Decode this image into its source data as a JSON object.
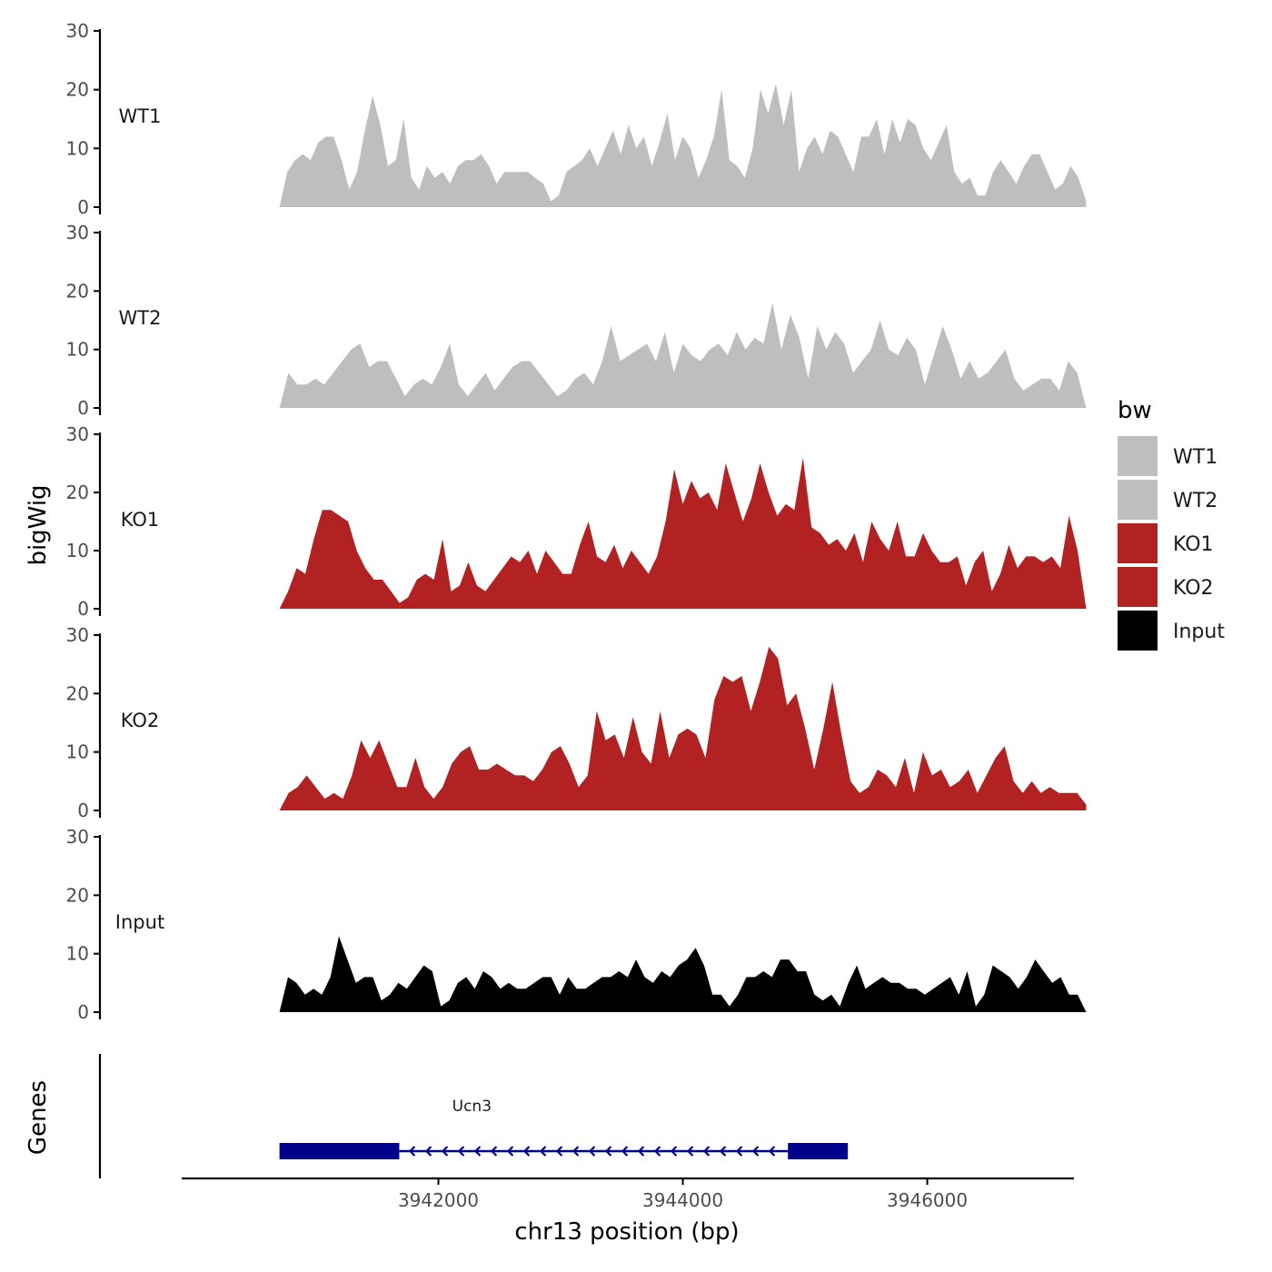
{
  "chart_data": {
    "type": "area",
    "y_title": "bigWig",
    "x_title": "chr13 position (bp)",
    "x_ticks": [
      3942000,
      3944000,
      3946000
    ],
    "x_tick_labels": [
      "3942000",
      "3944000",
      "3946000"
    ],
    "xlim": [
      3939900,
      3947200
    ],
    "y_ticks": [
      0,
      10,
      20,
      30
    ],
    "ylim": [
      0,
      30
    ],
    "data_x_range": [
      3940700,
      3947300
    ],
    "legend": {
      "title": "bw",
      "entries": [
        {
          "label": "WT1",
          "color": "#bebebe"
        },
        {
          "label": "WT2",
          "color": "#bebebe"
        },
        {
          "label": "KO1",
          "color": "#b22222"
        },
        {
          "label": "KO2",
          "color": "#b22222"
        },
        {
          "label": "Input",
          "color": "#000000"
        }
      ]
    },
    "series": [
      {
        "name": "WT1",
        "color": "#bebebe",
        "values": [
          0,
          6,
          8,
          9,
          8,
          11,
          12,
          12,
          8,
          3,
          6,
          13,
          19,
          14,
          7,
          8,
          15,
          5,
          3,
          7,
          5,
          6,
          4,
          7,
          8,
          8,
          9,
          7,
          4,
          6,
          6,
          6,
          6,
          5,
          4,
          1,
          2,
          6,
          7,
          8,
          10,
          7,
          10,
          13,
          9,
          14,
          10,
          12,
          7,
          11,
          16,
          8,
          12,
          10,
          5,
          8,
          12,
          20,
          8,
          7,
          5,
          10,
          20,
          16,
          21,
          14,
          20,
          6,
          10,
          12,
          9,
          13,
          12,
          9,
          6,
          12,
          12,
          15,
          9,
          15,
          11,
          15,
          14,
          10,
          8,
          11,
          14,
          6,
          4,
          5,
          2,
          2,
          6,
          8,
          6,
          4,
          7,
          9,
          9,
          6,
          3,
          4,
          7,
          5,
          1
        ]
      },
      {
        "name": "WT2",
        "color": "#bebebe",
        "values": [
          0,
          6,
          4,
          4,
          5,
          4,
          6,
          8,
          10,
          11,
          7,
          8,
          8,
          5,
          2,
          4,
          5,
          4,
          7,
          11,
          4,
          2,
          4,
          6,
          3,
          5,
          7,
          8,
          8,
          6,
          4,
          2,
          3,
          5,
          6,
          4,
          8,
          14,
          8,
          9,
          10,
          11,
          8,
          13,
          6,
          11,
          9,
          8,
          10,
          11,
          9,
          13,
          10,
          12,
          11,
          18,
          10,
          16,
          12,
          5,
          14,
          10,
          13,
          11,
          6,
          8,
          10,
          15,
          10,
          9,
          12,
          10,
          4,
          9,
          14,
          10,
          5,
          8,
          5,
          6,
          8,
          10,
          5,
          3,
          4,
          5,
          5,
          3,
          8,
          6,
          0
        ]
      },
      {
        "name": "KO1",
        "color": "#b22222",
        "values": [
          0,
          3,
          7,
          6,
          12,
          17,
          17,
          16,
          15,
          10,
          7,
          5,
          5,
          3,
          1,
          2,
          5,
          6,
          5,
          12,
          3,
          4,
          8,
          4,
          3,
          5,
          7,
          9,
          8,
          10,
          6,
          10,
          8,
          6,
          6,
          11,
          15,
          9,
          8,
          11,
          7,
          10,
          8,
          6,
          9,
          15,
          24,
          18,
          22,
          19,
          20,
          17,
          25,
          20,
          15,
          19,
          25,
          20,
          16,
          18,
          17,
          26,
          14,
          13,
          11,
          12,
          10,
          13,
          8,
          15,
          12,
          10,
          15,
          9,
          9,
          13,
          10,
          8,
          8,
          9,
          4,
          8,
          10,
          3,
          6,
          11,
          7,
          9,
          9,
          8,
          9,
          7,
          16,
          10,
          0
        ]
      },
      {
        "name": "KO2",
        "color": "#b22222",
        "values": [
          0,
          3,
          4,
          6,
          4,
          2,
          3,
          2,
          6,
          12,
          9,
          12,
          8,
          4,
          4,
          9,
          4,
          2,
          4,
          8,
          10,
          11,
          7,
          7,
          8,
          7,
          6,
          6,
          5,
          7,
          10,
          11,
          8,
          4,
          6,
          17,
          12,
          13,
          9,
          16,
          10,
          8,
          17,
          9,
          13,
          14,
          13,
          9,
          19,
          23,
          22,
          23,
          17,
          22,
          28,
          26,
          18,
          20,
          14,
          7,
          14,
          22,
          13,
          5,
          3,
          4,
          7,
          6,
          4,
          9,
          3,
          10,
          6,
          7,
          4,
          5,
          7,
          3,
          6,
          9,
          11,
          5,
          3,
          5,
          3,
          4,
          3,
          3,
          3,
          1
        ]
      },
      {
        "name": "Input",
        "color": "#000000",
        "values": [
          0,
          6,
          5,
          3,
          4,
          3,
          6,
          13,
          9,
          5,
          6,
          6,
          2,
          3,
          5,
          4,
          6,
          8,
          7,
          1,
          2,
          5,
          6,
          4,
          7,
          6,
          4,
          5,
          4,
          4,
          5,
          6,
          6,
          3,
          6,
          4,
          4,
          5,
          6,
          6,
          7,
          6,
          9,
          6,
          5,
          7,
          6,
          8,
          9,
          11,
          8,
          3,
          3,
          1,
          3,
          6,
          6,
          7,
          6,
          9,
          9,
          7,
          7,
          3,
          2,
          3,
          1,
          5,
          8,
          4,
          5,
          6,
          5,
          5,
          4,
          4,
          3,
          4,
          5,
          6,
          3,
          7,
          1,
          3,
          8,
          7,
          6,
          4,
          6,
          9,
          7,
          5,
          6,
          3,
          3,
          0
        ]
      }
    ],
    "genes": {
      "title": "Genes",
      "items": [
        {
          "name": "Ucn3",
          "strand": "-",
          "exons": [
            [
              3940700,
              3941680
            ],
            [
              3944860,
              3945350
            ]
          ],
          "intron": [
            3941680,
            3944860
          ],
          "color": "#00008b"
        }
      ]
    }
  }
}
